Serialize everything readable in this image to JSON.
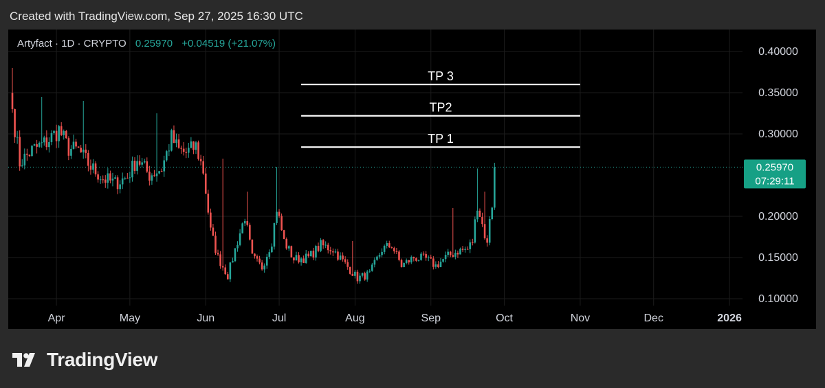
{
  "header": {
    "created_text": "Created with TradingView.com, Sep 27, 2025 16:30 UTC"
  },
  "symbol": {
    "name": "Artyfact · 1D · CRYPTO",
    "last": "0.25970",
    "change": "+0.04519 (+21.07%)"
  },
  "price_badge": {
    "price": "0.25970",
    "countdown": "07:29:11"
  },
  "brand": {
    "name": "TradingView"
  },
  "colors": {
    "up": "#26a69a",
    "down": "#ef5350",
    "background": "#000000",
    "frame": "#2a2a2a",
    "badge": "#16a085"
  },
  "chart_data": {
    "type": "candlestick",
    "x_ticks": [
      "Apr",
      "May",
      "Jun",
      "Jul",
      "Aug",
      "Sep",
      "Oct",
      "Nov",
      "Dec",
      "2026"
    ],
    "y_ticks": [
      "0.40000",
      "0.35000",
      "0.30000",
      "0.20000",
      "0.15000",
      "0.10000"
    ],
    "ylim": [
      0.095,
      0.42
    ],
    "x_start": "2025-03-14",
    "last_price": 0.2597,
    "annotations": [
      {
        "label": "TP 3",
        "price": 0.36,
        "from": "2025-07-10",
        "to": "2025-11-01"
      },
      {
        "label": "TP2",
        "price": 0.322,
        "from": "2025-07-10",
        "to": "2025-11-01"
      },
      {
        "label": "TP 1",
        "price": 0.284,
        "from": "2025-07-10",
        "to": "2025-11-01"
      }
    ],
    "close_anchors": [
      [
        "2025-03-14",
        0.33
      ],
      [
        "2025-03-17",
        0.265
      ],
      [
        "2025-03-22",
        0.28
      ],
      [
        "2025-03-28",
        0.29
      ],
      [
        "2025-04-02",
        0.305
      ],
      [
        "2025-04-06",
        0.282
      ],
      [
        "2025-04-10",
        0.28
      ],
      [
        "2025-04-15",
        0.26
      ],
      [
        "2025-04-20",
        0.246
      ],
      [
        "2025-04-25",
        0.24
      ],
      [
        "2025-04-30",
        0.248
      ],
      [
        "2025-05-04",
        0.27
      ],
      [
        "2025-05-09",
        0.25
      ],
      [
        "2025-05-14",
        0.258
      ],
      [
        "2025-05-18",
        0.295
      ],
      [
        "2025-05-21",
        0.28
      ],
      [
        "2025-05-24",
        0.277
      ],
      [
        "2025-05-28",
        0.285
      ],
      [
        "2025-05-31",
        0.255
      ],
      [
        "2025-06-03",
        0.182
      ],
      [
        "2025-06-06",
        0.15
      ],
      [
        "2025-06-10",
        0.128
      ],
      [
        "2025-06-14",
        0.17
      ],
      [
        "2025-06-17",
        0.2
      ],
      [
        "2025-06-20",
        0.15
      ],
      [
        "2025-06-24",
        0.138
      ],
      [
        "2025-06-28",
        0.17
      ],
      [
        "2025-06-30",
        0.21
      ],
      [
        "2025-07-03",
        0.17
      ],
      [
        "2025-07-07",
        0.148
      ],
      [
        "2025-07-13",
        0.15
      ],
      [
        "2025-07-18",
        0.165
      ],
      [
        "2025-07-23",
        0.16
      ],
      [
        "2025-07-28",
        0.142
      ],
      [
        "2025-08-02",
        0.125
      ],
      [
        "2025-08-07",
        0.13
      ],
      [
        "2025-08-12",
        0.16
      ],
      [
        "2025-08-16",
        0.165
      ],
      [
        "2025-08-20",
        0.14
      ],
      [
        "2025-08-25",
        0.15
      ],
      [
        "2025-08-30",
        0.148
      ],
      [
        "2025-09-03",
        0.14
      ],
      [
        "2025-09-07",
        0.15
      ],
      [
        "2025-09-12",
        0.158
      ],
      [
        "2025-09-16",
        0.16
      ],
      [
        "2025-09-18",
        0.17
      ],
      [
        "2025-09-20",
        0.215
      ],
      [
        "2025-09-22",
        0.19
      ],
      [
        "2025-09-24",
        0.165
      ],
      [
        "2025-09-25",
        0.2
      ],
      [
        "2025-09-26",
        0.215
      ],
      [
        "2025-09-27",
        0.2597
      ]
    ],
    "wick_spikes": [
      [
        "2025-03-14",
        0.38
      ],
      [
        "2025-03-26",
        0.345
      ],
      [
        "2025-04-12",
        0.34
      ],
      [
        "2025-05-12",
        0.325
      ],
      [
        "2025-06-08",
        0.27
      ],
      [
        "2025-06-18",
        0.23
      ],
      [
        "2025-06-30",
        0.26
      ],
      [
        "2025-07-31",
        0.17
      ],
      [
        "2025-09-10",
        0.21
      ],
      [
        "2025-09-20",
        0.258
      ],
      [
        "2025-09-23",
        0.23
      ],
      [
        "2025-09-27",
        0.265
      ]
    ]
  }
}
